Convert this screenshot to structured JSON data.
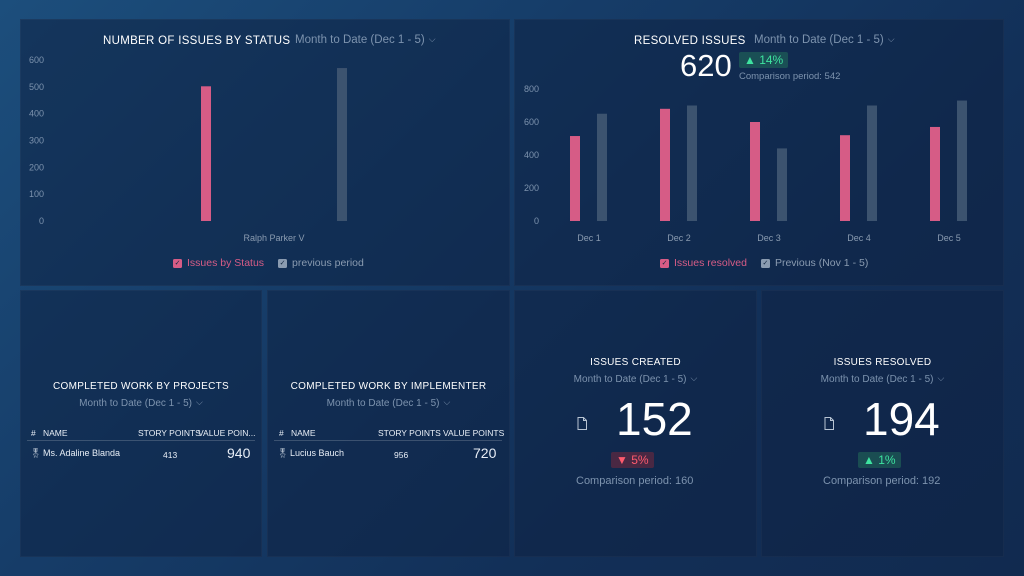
{
  "colors": {
    "pink": "#d65c86",
    "slate": "#3c536f",
    "green": "#3ee3a0",
    "red": "#ff5b6e"
  },
  "status_panel": {
    "title": "NUMBER OF ISSUES BY STATUS",
    "period": "Month to Date (Dec 1 - 5)",
    "legend": [
      "Issues by Status",
      "previous period"
    ],
    "chart_data": {
      "type": "bar",
      "categories": [
        "Ralph Parker V"
      ],
      "series": [
        {
          "name": "Issues by Status",
          "values": [
            502
          ]
        },
        {
          "name": "previous period",
          "values": [
            570
          ]
        }
      ],
      "yticks": [
        "600",
        "500",
        "400",
        "300",
        "200",
        "100",
        "0"
      ],
      "ylim": [
        0,
        600
      ]
    }
  },
  "resolved_panel": {
    "title": "RESOLVED ISSUES",
    "period": "Month to Date (Dec 1 - 5)",
    "value": "620",
    "badge": "▲ 14%",
    "comparison": "Comparison period: 542",
    "legend": [
      "Issues resolved",
      "Previous (Nov 1 - 5)"
    ],
    "chart_data": {
      "type": "bar",
      "categories": [
        "Dec 1",
        "Dec 2",
        "Dec 3",
        "Dec 4",
        "Dec 5"
      ],
      "series": [
        {
          "name": "Issues resolved",
          "values": [
            515,
            680,
            600,
            520,
            570
          ]
        },
        {
          "name": "Previous (Nov 1 - 5)",
          "values": [
            650,
            700,
            440,
            700,
            730
          ]
        }
      ],
      "yticks": [
        "800",
        "600",
        "400",
        "200",
        "0"
      ],
      "ylim": [
        0,
        800
      ]
    }
  },
  "projects_panel": {
    "title": "COMPLETED WORK BY PROJECTS",
    "period": "Month to Date (Dec 1 - 5)",
    "headers": {
      "num": "#",
      "name": "NAME",
      "story": "STORY POINTS",
      "value": "VALUE POIN..."
    },
    "row": {
      "name": "Ms. Adaline Blanda",
      "story": "413",
      "value": "940"
    }
  },
  "implementer_panel": {
    "title": "COMPLETED WORK BY IMPLEMENTER",
    "period": "Month to Date (Dec 1 - 5)",
    "headers": {
      "num": "#",
      "name": "NAME",
      "story": "STORY POINTS",
      "value": "VALUE POINTS"
    },
    "row": {
      "name": "Lucius Bauch",
      "story": "956",
      "value": "720"
    }
  },
  "created_panel": {
    "title": "ISSUES CREATED",
    "period": "Month to Date (Dec 1 - 5)",
    "value": "152",
    "badge": "▼ 5%",
    "comparison": "Comparison period: 160"
  },
  "resolved_kpi_panel": {
    "title": "ISSUES RESOLVED",
    "period": "Month to Date (Dec 1 - 5)",
    "value": "194",
    "badge": "▲ 1%",
    "comparison": "Comparison period: 192"
  }
}
